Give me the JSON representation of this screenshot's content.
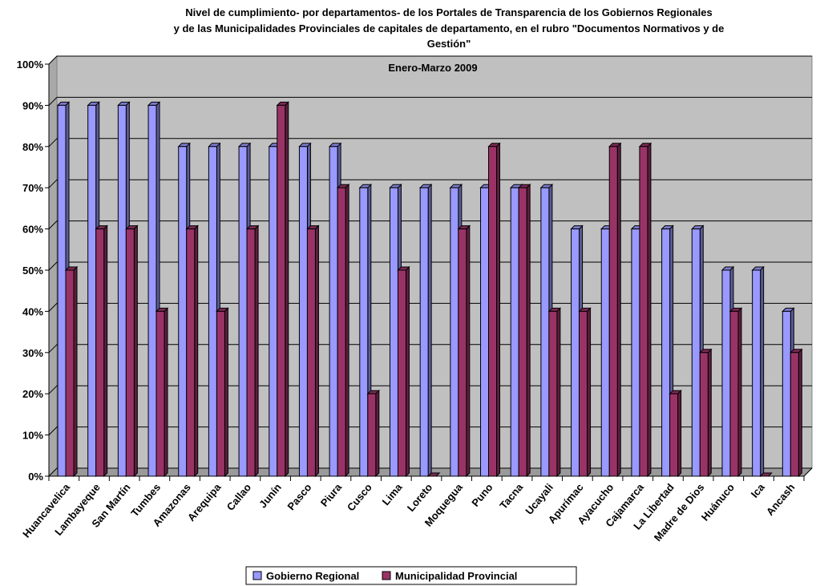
{
  "chart_data": {
    "type": "bar",
    "title_lines": [
      "Nivel de cumplimiento- por departamentos- de los Portales de Transparencia de los Gobiernos Regionales",
      "y de las Municipalidades Provinciales de capitales de departamento, en el rubro \"Documentos Normativos y de",
      "Gestión\""
    ],
    "subtitle": "Enero-Marzo 2009",
    "categories": [
      "Huancavelica",
      "Lambayeque",
      "San Martín",
      "Tumbes",
      "Amazonas",
      "Arequipa",
      "Callao",
      "Junín",
      "Pasco",
      "Piura",
      "Cusco",
      "Lima",
      "Loreto",
      "Moquegua",
      "Puno",
      "Tacna",
      "Ucayali",
      "Apurímac",
      "Ayacucho",
      "Cajamarca",
      "La Libertad",
      "Madre de Dios",
      "Huánuco",
      "Ica",
      "Ancash"
    ],
    "series": [
      {
        "name": "Gobierno Regional",
        "color": "#9999ff",
        "values": [
          90,
          90,
          90,
          90,
          80,
          80,
          80,
          80,
          80,
          80,
          70,
          70,
          70,
          70,
          70,
          70,
          70,
          60,
          60,
          60,
          60,
          60,
          50,
          50,
          40
        ]
      },
      {
        "name": "Municipalidad Provincial",
        "color": "#993366",
        "values": [
          50,
          60,
          60,
          40,
          60,
          40,
          60,
          90,
          60,
          70,
          20,
          50,
          0,
          60,
          80,
          70,
          40,
          40,
          80,
          80,
          20,
          30,
          40,
          0,
          30
        ]
      }
    ],
    "ylim": [
      0,
      100
    ],
    "y_ticks": [
      "0%",
      "10%",
      "20%",
      "30%",
      "40%",
      "50%",
      "60%",
      "70%",
      "80%",
      "90%",
      "100%"
    ],
    "grid": true,
    "legend_position": "bottom",
    "plot_background": "#c0c0c0"
  }
}
